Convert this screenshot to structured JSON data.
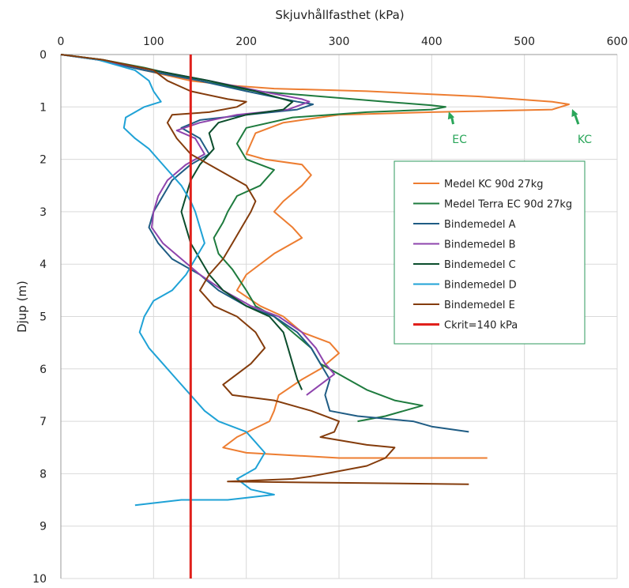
{
  "chart_data": {
    "type": "line",
    "orientation": "depth-profile",
    "xlabel": "Skjuvhållfasthet (kPa)",
    "ylabel": "Djup (m)",
    "xlim": [
      0,
      600
    ],
    "ylim": [
      0,
      10
    ],
    "x_ticks": [
      0,
      100,
      200,
      300,
      400,
      500,
      600
    ],
    "y_ticks": [
      0,
      1,
      2,
      3,
      4,
      5,
      6,
      7,
      8,
      9,
      10
    ],
    "x_axis_position": "top",
    "y_axis_inverted": true,
    "grid": true,
    "legend_position": "right",
    "series": [
      {
        "name": "Medel KC 90d 27kg",
        "color": "#ED7D31",
        "points": [
          [
            0,
            0
          ],
          [
            40,
            0.1
          ],
          [
            90,
            0.3
          ],
          [
            140,
            0.5
          ],
          [
            190,
            0.6
          ],
          [
            230,
            0.65
          ],
          [
            330,
            0.7
          ],
          [
            450,
            0.8
          ],
          [
            530,
            0.9
          ],
          [
            548,
            0.95
          ],
          [
            530,
            1.05
          ],
          [
            400,
            1.1
          ],
          [
            300,
            1.15
          ],
          [
            240,
            1.3
          ],
          [
            210,
            1.5
          ],
          [
            200,
            1.9
          ],
          [
            220,
            2.0
          ],
          [
            260,
            2.1
          ],
          [
            270,
            2.3
          ],
          [
            260,
            2.5
          ],
          [
            240,
            2.8
          ],
          [
            230,
            3.0
          ],
          [
            250,
            3.3
          ],
          [
            260,
            3.5
          ],
          [
            230,
            3.8
          ],
          [
            200,
            4.2
          ],
          [
            190,
            4.5
          ],
          [
            215,
            4.8
          ],
          [
            240,
            5.0
          ],
          [
            260,
            5.3
          ],
          [
            290,
            5.5
          ],
          [
            300,
            5.7
          ],
          [
            280,
            6.0
          ],
          [
            260,
            6.2
          ],
          [
            235,
            6.5
          ],
          [
            230,
            6.8
          ],
          [
            225,
            7.0
          ],
          [
            190,
            7.3
          ],
          [
            175,
            7.5
          ],
          [
            200,
            7.6
          ],
          [
            250,
            7.65
          ],
          [
            300,
            7.7
          ],
          [
            400,
            7.7
          ],
          [
            460,
            7.7
          ]
        ]
      },
      {
        "name": "Medel Terra EC 90d 27kg",
        "color": "#1E7B3E",
        "points": [
          [
            0,
            0
          ],
          [
            45,
            0.1
          ],
          [
            90,
            0.25
          ],
          [
            150,
            0.5
          ],
          [
            210,
            0.7
          ],
          [
            280,
            0.8
          ],
          [
            350,
            0.9
          ],
          [
            400,
            0.97
          ],
          [
            415,
            1.0
          ],
          [
            400,
            1.05
          ],
          [
            330,
            1.1
          ],
          [
            250,
            1.2
          ],
          [
            200,
            1.4
          ],
          [
            190,
            1.7
          ],
          [
            200,
            2.0
          ],
          [
            230,
            2.2
          ],
          [
            215,
            2.5
          ],
          [
            190,
            2.7
          ],
          [
            180,
            3.0
          ],
          [
            175,
            3.2
          ],
          [
            165,
            3.5
          ],
          [
            170,
            3.8
          ],
          [
            185,
            4.1
          ],
          [
            200,
            4.5
          ],
          [
            210,
            4.8
          ],
          [
            230,
            5.0
          ],
          [
            250,
            5.3
          ],
          [
            270,
            5.6
          ],
          [
            280,
            5.9
          ],
          [
            310,
            6.2
          ],
          [
            330,
            6.4
          ],
          [
            360,
            6.6
          ],
          [
            390,
            6.7
          ],
          [
            350,
            6.9
          ],
          [
            320,
            7.0
          ]
        ]
      },
      {
        "name": "Bindemedel A",
        "color": "#1F5C84",
        "points": [
          [
            0,
            0
          ],
          [
            40,
            0.1
          ],
          [
            90,
            0.3
          ],
          [
            150,
            0.5
          ],
          [
            200,
            0.7
          ],
          [
            255,
            0.9
          ],
          [
            272,
            0.95
          ],
          [
            255,
            1.05
          ],
          [
            200,
            1.15
          ],
          [
            150,
            1.25
          ],
          [
            130,
            1.4
          ],
          [
            150,
            1.6
          ],
          [
            160,
            1.9
          ],
          [
            140,
            2.1
          ],
          [
            120,
            2.4
          ],
          [
            110,
            2.7
          ],
          [
            100,
            3.0
          ],
          [
            95,
            3.3
          ],
          [
            105,
            3.6
          ],
          [
            120,
            3.9
          ],
          [
            150,
            4.2
          ],
          [
            170,
            4.5
          ],
          [
            200,
            4.8
          ],
          [
            230,
            5.0
          ],
          [
            255,
            5.3
          ],
          [
            270,
            5.6
          ],
          [
            280,
            5.9
          ],
          [
            290,
            6.2
          ],
          [
            285,
            6.5
          ],
          [
            290,
            6.8
          ],
          [
            320,
            6.9
          ],
          [
            380,
            7.0
          ],
          [
            400,
            7.1
          ],
          [
            440,
            7.2
          ]
        ]
      },
      {
        "name": "Bindemedel B",
        "color": "#8E44AD",
        "points": [
          [
            0,
            0
          ],
          [
            40,
            0.1
          ],
          [
            100,
            0.3
          ],
          [
            160,
            0.5
          ],
          [
            215,
            0.7
          ],
          [
            260,
            0.85
          ],
          [
            268,
            0.9
          ],
          [
            245,
            1.05
          ],
          [
            190,
            1.15
          ],
          [
            150,
            1.3
          ],
          [
            125,
            1.45
          ],
          [
            145,
            1.6
          ],
          [
            155,
            1.9
          ],
          [
            135,
            2.1
          ],
          [
            115,
            2.4
          ],
          [
            105,
            2.7
          ],
          [
            100,
            3.0
          ],
          [
            98,
            3.3
          ],
          [
            110,
            3.6
          ],
          [
            130,
            3.9
          ],
          [
            150,
            4.2
          ],
          [
            175,
            4.5
          ],
          [
            205,
            4.8
          ],
          [
            235,
            5.0
          ],
          [
            260,
            5.3
          ],
          [
            275,
            5.6
          ],
          [
            285,
            5.9
          ],
          [
            295,
            6.1
          ],
          [
            280,
            6.3
          ],
          [
            265,
            6.5
          ]
        ]
      },
      {
        "name": "Bindemedel C",
        "color": "#0B4D2C",
        "points": [
          [
            0,
            0
          ],
          [
            45,
            0.1
          ],
          [
            100,
            0.3
          ],
          [
            160,
            0.5
          ],
          [
            210,
            0.7
          ],
          [
            250,
            0.9
          ],
          [
            240,
            1.05
          ],
          [
            200,
            1.15
          ],
          [
            170,
            1.3
          ],
          [
            160,
            1.5
          ],
          [
            165,
            1.8
          ],
          [
            150,
            2.1
          ],
          [
            140,
            2.4
          ],
          [
            135,
            2.7
          ],
          [
            130,
            3.0
          ],
          [
            135,
            3.3
          ],
          [
            140,
            3.6
          ],
          [
            150,
            3.9
          ],
          [
            160,
            4.2
          ],
          [
            175,
            4.5
          ],
          [
            200,
            4.8
          ],
          [
            225,
            5.0
          ],
          [
            240,
            5.3
          ],
          [
            245,
            5.6
          ],
          [
            250,
            5.9
          ],
          [
            255,
            6.2
          ],
          [
            260,
            6.4
          ]
        ]
      },
      {
        "name": "Bindemedel D",
        "color": "#1FA2D6",
        "points": [
          [
            0,
            0
          ],
          [
            40,
            0.1
          ],
          [
            80,
            0.3
          ],
          [
            95,
            0.5
          ],
          [
            100,
            0.7
          ],
          [
            108,
            0.9
          ],
          [
            90,
            1.0
          ],
          [
            70,
            1.2
          ],
          [
            68,
            1.4
          ],
          [
            80,
            1.6
          ],
          [
            95,
            1.8
          ],
          [
            105,
            2.0
          ],
          [
            115,
            2.2
          ],
          [
            130,
            2.5
          ],
          [
            140,
            2.8
          ],
          [
            145,
            3.0
          ],
          [
            150,
            3.3
          ],
          [
            155,
            3.6
          ],
          [
            145,
            3.9
          ],
          [
            135,
            4.2
          ],
          [
            120,
            4.5
          ],
          [
            100,
            4.7
          ],
          [
            90,
            5.0
          ],
          [
            85,
            5.3
          ],
          [
            95,
            5.6
          ],
          [
            110,
            5.9
          ],
          [
            125,
            6.2
          ],
          [
            140,
            6.5
          ],
          [
            155,
            6.8
          ],
          [
            170,
            7.0
          ],
          [
            200,
            7.2
          ],
          [
            210,
            7.4
          ],
          [
            220,
            7.6
          ],
          [
            210,
            7.9
          ],
          [
            190,
            8.1
          ],
          [
            205,
            8.3
          ],
          [
            230,
            8.4
          ],
          [
            180,
            8.5
          ],
          [
            130,
            8.5
          ],
          [
            80,
            8.6
          ]
        ]
      },
      {
        "name": "Bindemedel E",
        "color": "#843C0C",
        "points": [
          [
            0,
            0
          ],
          [
            45,
            0.1
          ],
          [
            100,
            0.3
          ],
          [
            115,
            0.5
          ],
          [
            140,
            0.7
          ],
          [
            180,
            0.85
          ],
          [
            200,
            0.9
          ],
          [
            190,
            1.0
          ],
          [
            160,
            1.1
          ],
          [
            120,
            1.15
          ],
          [
            115,
            1.3
          ],
          [
            125,
            1.6
          ],
          [
            140,
            1.9
          ],
          [
            160,
            2.1
          ],
          [
            180,
            2.3
          ],
          [
            200,
            2.5
          ],
          [
            210,
            2.8
          ],
          [
            205,
            3.0
          ],
          [
            195,
            3.3
          ],
          [
            185,
            3.6
          ],
          [
            175,
            3.9
          ],
          [
            160,
            4.2
          ],
          [
            150,
            4.5
          ],
          [
            165,
            4.8
          ],
          [
            190,
            5.0
          ],
          [
            210,
            5.3
          ],
          [
            220,
            5.6
          ],
          [
            205,
            5.9
          ],
          [
            190,
            6.1
          ],
          [
            175,
            6.3
          ],
          [
            185,
            6.5
          ],
          [
            230,
            6.6
          ],
          [
            270,
            6.8
          ],
          [
            300,
            7.0
          ],
          [
            295,
            7.2
          ],
          [
            280,
            7.3
          ],
          [
            330,
            7.45
          ],
          [
            360,
            7.5
          ],
          [
            350,
            7.7
          ],
          [
            330,
            7.85
          ],
          [
            300,
            7.95
          ],
          [
            270,
            8.05
          ],
          [
            250,
            8.1
          ],
          [
            180,
            8.15
          ],
          [
            330,
            8.18
          ],
          [
            440,
            8.2
          ]
        ]
      },
      {
        "name": "Ckrit=140 kPa",
        "color": "#E0201B",
        "points": [
          [
            140,
            0
          ],
          [
            140,
            10
          ]
        ]
      }
    ],
    "annotations": [
      {
        "text": "EC",
        "x": 415,
        "y": 1.0,
        "label_x": 430,
        "label_y": 1.6,
        "color": "#2AA65A"
      },
      {
        "text": "KC",
        "x": 548,
        "y": 0.95,
        "label_x": 565,
        "label_y": 1.6,
        "color": "#2AA65A"
      }
    ]
  }
}
